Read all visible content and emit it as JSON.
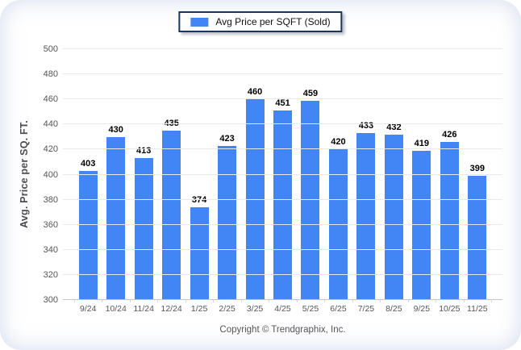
{
  "legend": {
    "label": "Avg Price per SQFT (Sold)",
    "swatch_color": "#4285f4"
  },
  "footer": {
    "copyright": "Copyright © Trendgraphix, Inc."
  },
  "colors": {
    "bar": "#4285f4",
    "legend_border": "#17375e",
    "gridline": "#e9e9e9",
    "axis_line": "#c6c6c6",
    "tick_text": "#555555",
    "value_label_text": "#000000",
    "y_title_text": "#4d4d4d"
  },
  "chart_data": {
    "type": "bar",
    "title": "",
    "series_name": "Avg Price per SQFT (Sold)",
    "categories": [
      "9/24",
      "10/24",
      "11/24",
      "12/24",
      "1/25",
      "2/25",
      "3/25",
      "4/25",
      "5/25",
      "6/25",
      "7/25",
      "8/25",
      "9/25",
      "10/25",
      "11/25"
    ],
    "values": [
      403,
      430,
      413,
      435,
      374,
      423,
      460,
      451,
      459,
      420,
      433,
      432,
      419,
      426,
      399
    ],
    "xlabel": "",
    "ylabel": "Avg. Price per SQ. FT.",
    "ylim": [
      300,
      500
    ],
    "ytick_step": 20,
    "grid": true,
    "value_labels": true,
    "legend_position": "top-center"
  }
}
